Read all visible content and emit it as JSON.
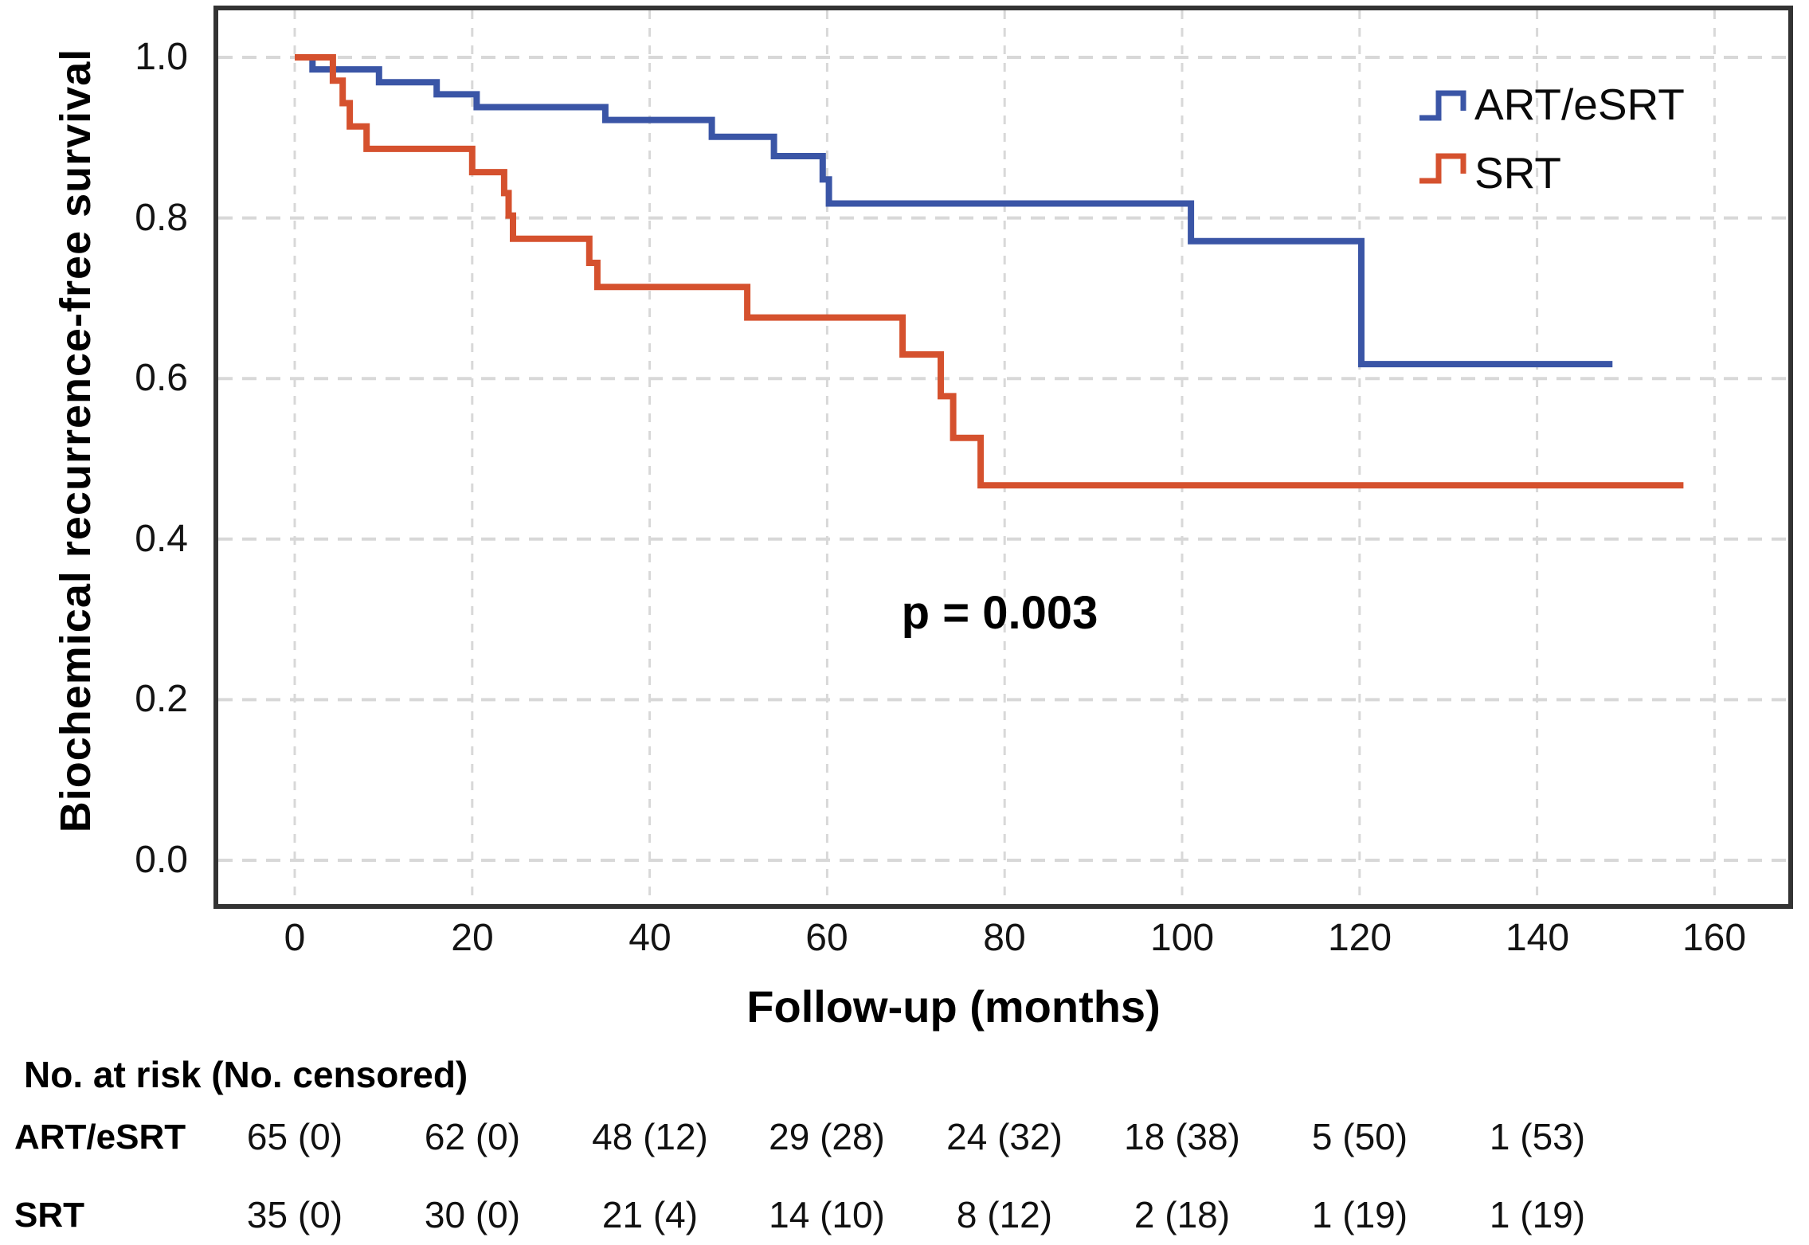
{
  "chart_data": {
    "type": "line",
    "subtype": "kaplan-meier-step",
    "title": "",
    "xlabel": "Follow-up (months)",
    "ylabel": "Biochemical recurrence-free survival",
    "annotation": "p = 0.003",
    "xlim": [
      -9,
      168.5
    ],
    "ylim": [
      -0.06,
      1.06
    ],
    "x_ticks": [
      0,
      20,
      40,
      60,
      80,
      100,
      120,
      140,
      160
    ],
    "x_tick_labels": [
      "0",
      "20",
      "40",
      "60",
      "80",
      "100",
      "120",
      "140",
      "160"
    ],
    "y_ticks": [
      1.0,
      0.8,
      0.6,
      0.4,
      0.2,
      0.0
    ],
    "y_tick_labels": [
      "1.0",
      "0.8",
      "0.6",
      "0.4",
      "0.2",
      "0.0"
    ],
    "grid": true,
    "grid_style": "dashed",
    "legend_position": "top-right",
    "series": [
      {
        "name": "ART/eSRT",
        "color": "#3a55a6",
        "start": [
          0,
          1.0
        ],
        "steps": [
          [
            2,
            0.985
          ],
          [
            9.5,
            0.969
          ],
          [
            16,
            0.954
          ],
          [
            20.5,
            0.938
          ],
          [
            35,
            0.922
          ],
          [
            47,
            0.901
          ],
          [
            54,
            0.877
          ],
          [
            59.5,
            0.848
          ],
          [
            60.2,
            0.818
          ],
          [
            101,
            0.771
          ],
          [
            120.2,
            0.618
          ]
        ],
        "end_month": 148.5,
        "final_value": 0.618
      },
      {
        "name": "SRT",
        "color": "#d5512e",
        "start": [
          0,
          1.0
        ],
        "steps": [
          [
            4.3,
            0.971
          ],
          [
            5.4,
            0.943
          ],
          [
            6.2,
            0.914
          ],
          [
            8.1,
            0.886
          ],
          [
            20,
            0.857
          ],
          [
            23.6,
            0.831
          ],
          [
            24.1,
            0.803
          ],
          [
            24.6,
            0.774
          ],
          [
            33.2,
            0.744
          ],
          [
            34.1,
            0.714
          ],
          [
            51,
            0.676
          ],
          [
            68.5,
            0.63
          ],
          [
            72.8,
            0.578
          ],
          [
            74.2,
            0.526
          ],
          [
            77.3,
            0.467
          ]
        ],
        "end_month": 156.5,
        "final_value": 0.467
      }
    ]
  },
  "legend": {
    "entries": [
      {
        "label": "ART/eSRT",
        "color": "#3a55a6"
      },
      {
        "label": "SRT",
        "color": "#d5512e"
      }
    ]
  },
  "risk_table": {
    "header": "No. at risk (No. censored)",
    "time_points": [
      0,
      20,
      40,
      60,
      80,
      100,
      120,
      140
    ],
    "rows": [
      {
        "label": "ART/eSRT",
        "values": [
          "65 (0)",
          "62 (0)",
          "48 (12)",
          "29 (28)",
          "24 (32)",
          "18 (38)",
          "5 (50)",
          "1 (53)"
        ]
      },
      {
        "label": "SRT",
        "values": [
          "35 (0)",
          "30 (0)",
          "21 (4)",
          "14 (10)",
          "8 (12)",
          "2 (18)",
          "1 (19)",
          "1 (19)"
        ]
      }
    ]
  },
  "colors": {
    "frame": "#333333",
    "grid": "#d8d8d8",
    "background": "#ffffff"
  }
}
